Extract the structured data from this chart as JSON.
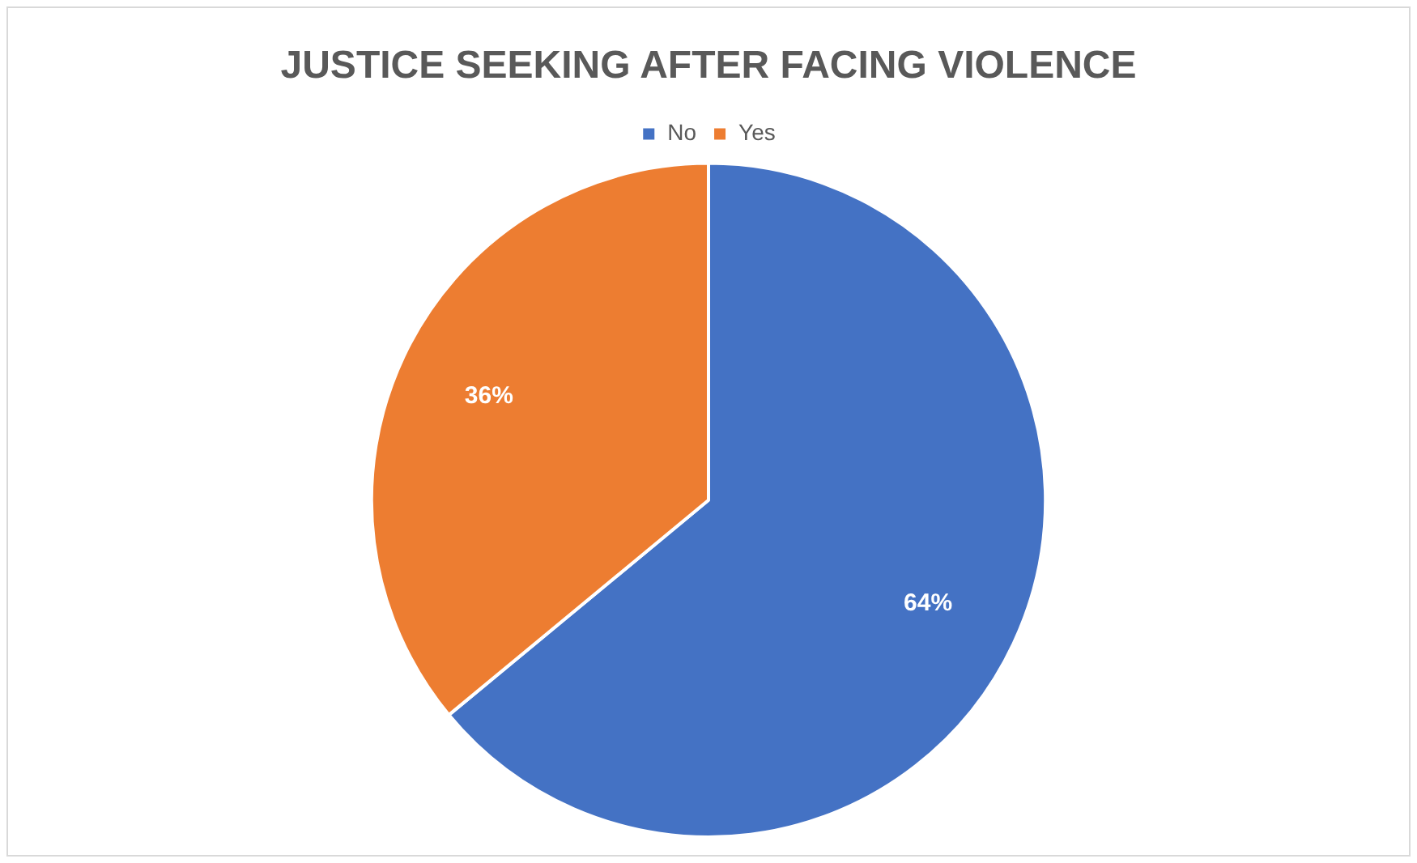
{
  "chart_data": {
    "type": "pie",
    "title": "JUSTICE SEEKING AFTER FACING VIOLENCE",
    "categories": [
      "No",
      "Yes"
    ],
    "values": [
      64,
      36
    ],
    "colors": [
      "#4472c4",
      "#ed7d31"
    ],
    "value_labels": [
      "64%",
      "36%"
    ],
    "legend": "top"
  }
}
